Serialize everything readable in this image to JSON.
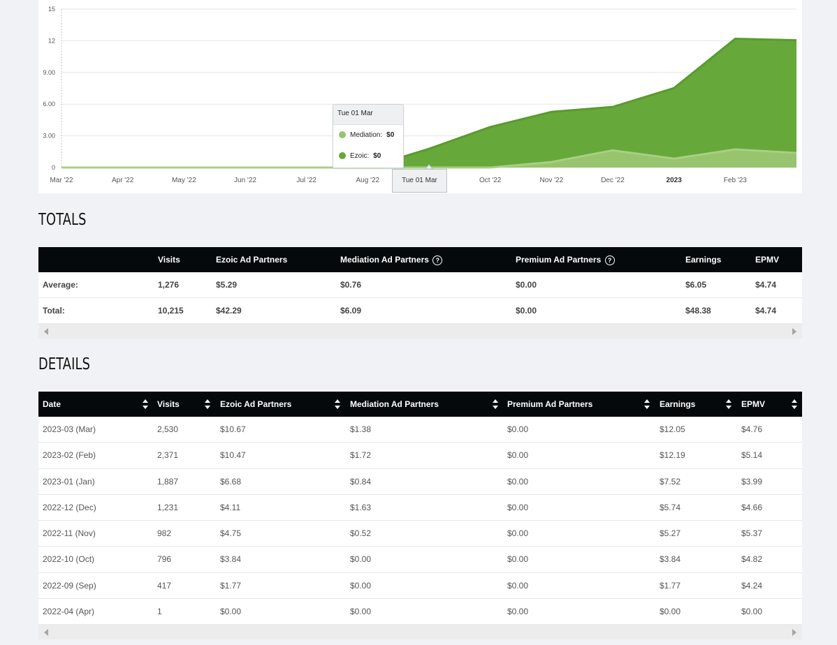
{
  "chart_data": {
    "type": "area",
    "y_ticks": [
      "0",
      "3.00",
      "6.00",
      "9.00",
      "12",
      "15"
    ],
    "ylim": [
      0,
      15
    ],
    "x_ticks": [
      "Mar '22",
      "Apr '22",
      "May '22",
      "Jun '22",
      "Jul '22",
      "Aug '22",
      "Sep '22",
      "Oct '22",
      "Nov '22",
      "Dec '22",
      "2023",
      "Feb '23"
    ],
    "x": [
      "2022-03",
      "2022-04",
      "2022-05",
      "2022-06",
      "2022-07",
      "2022-08",
      "2022-09",
      "2022-10",
      "2022-11",
      "2022-12",
      "2023-01",
      "2023-02",
      "2023-03"
    ],
    "series": [
      {
        "name": "Mediation",
        "values": [
          0,
          0,
          0,
          0,
          0,
          0,
          0,
          0,
          0.52,
          1.63,
          0.84,
          1.72,
          1.38
        ],
        "color": "#97c46d"
      },
      {
        "name": "Ezoic",
        "values": [
          0,
          0,
          0,
          0,
          0,
          0,
          1.77,
          3.84,
          4.75,
          4.11,
          6.68,
          10.47,
          10.67
        ],
        "color": "#67a83a"
      }
    ],
    "grid": true,
    "legend": "none",
    "tooltip": {
      "title": "Tue 01 Mar",
      "rows": [
        {
          "label": "Mediation:",
          "value": "$0",
          "color": "#97c46d"
        },
        {
          "label": "Ezoic:",
          "value": "$0",
          "color": "#67a83a"
        }
      ]
    },
    "crosshair_label": "Tue 01 Mar"
  },
  "totals": {
    "title": "TOTALS",
    "headers": [
      "",
      "Visits",
      "Ezoic Ad Partners",
      "Mediation Ad Partners",
      "Premium Ad Partners",
      "Earnings",
      "EPMV"
    ],
    "rows": [
      [
        "Average:",
        "1,276",
        "$5.29",
        "$0.76",
        "$0.00",
        "$6.05",
        "$4.74"
      ],
      [
        "Total:",
        "10,215",
        "$42.29",
        "$6.09",
        "$0.00",
        "$48.38",
        "$4.74"
      ]
    ]
  },
  "details": {
    "title": "DETAILS",
    "headers": [
      "Date",
      "Visits",
      "Ezoic Ad Partners",
      "Mediation Ad Partners",
      "Premium Ad Partners",
      "Earnings",
      "EPMV"
    ],
    "rows": [
      [
        "2023-03 (Mar)",
        "2,530",
        "$10.67",
        "$1.38",
        "$0.00",
        "$12.05",
        "$4.76"
      ],
      [
        "2023-02 (Feb)",
        "2,371",
        "$10.47",
        "$1.72",
        "$0.00",
        "$12.19",
        "$5.14"
      ],
      [
        "2023-01 (Jan)",
        "1,887",
        "$6.68",
        "$0.84",
        "$0.00",
        "$7.52",
        "$3.99"
      ],
      [
        "2022-12 (Dec)",
        "1,231",
        "$4.11",
        "$1.63",
        "$0.00",
        "$5.74",
        "$4.66"
      ],
      [
        "2022-11 (Nov)",
        "982",
        "$4.75",
        "$0.52",
        "$0.00",
        "$5.27",
        "$5.37"
      ],
      [
        "2022-10 (Oct)",
        "796",
        "$3.84",
        "$0.00",
        "$0.00",
        "$3.84",
        "$4.82"
      ],
      [
        "2022-09 (Sep)",
        "417",
        "$1.77",
        "$0.00",
        "$0.00",
        "$1.77",
        "$4.24"
      ],
      [
        "2022-04 (Apr)",
        "1",
        "$0.00",
        "$0.00",
        "$0.00",
        "$0.00",
        "$0.00"
      ]
    ]
  }
}
